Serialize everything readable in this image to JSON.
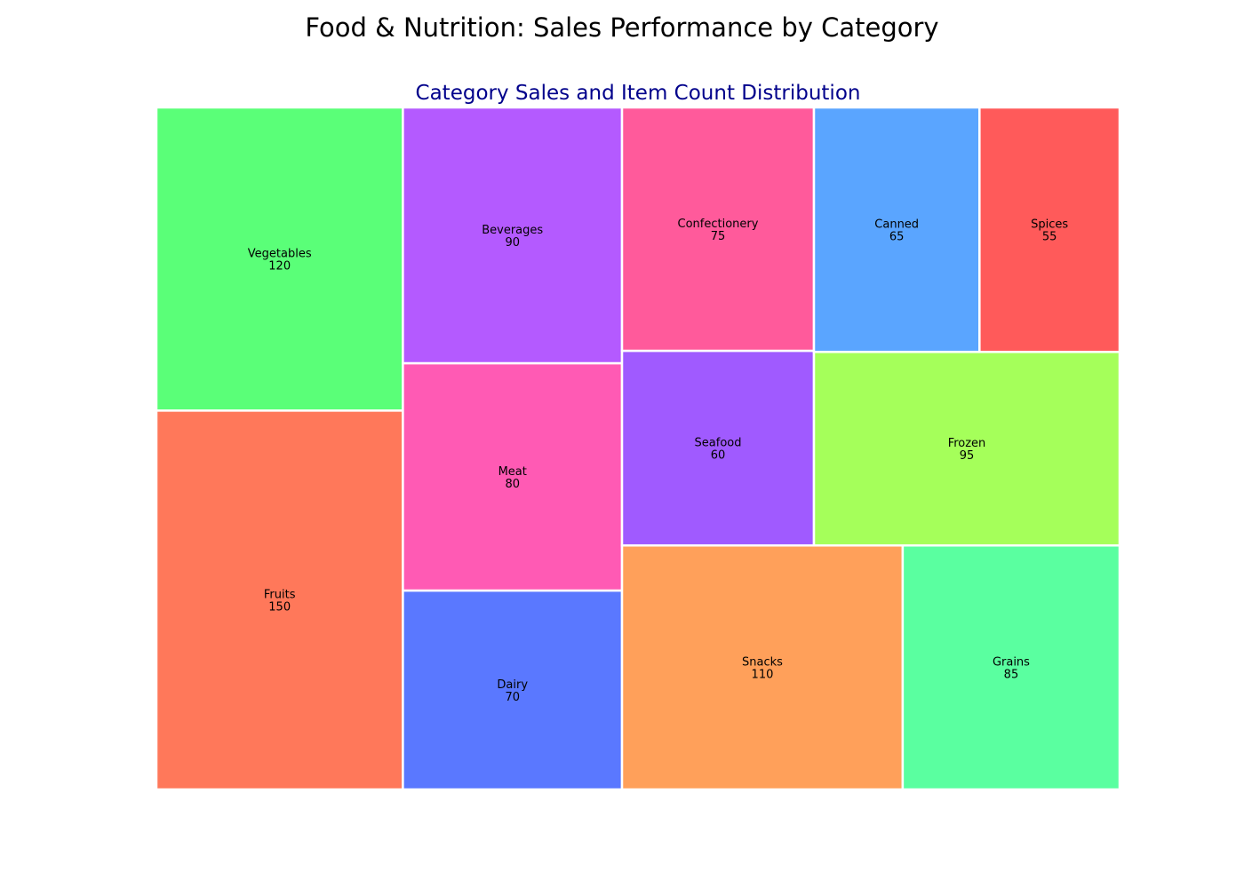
{
  "title": "Food & Nutrition: Sales Performance by Category",
  "chart_data": {
    "type": "treemap",
    "subtitle": "Category Sales and Item Count Distribution",
    "subtitle_color": "#00008b",
    "tile_border_color": "#ffffff",
    "items": [
      {
        "name": "Fruits",
        "value": 150,
        "color": "#ff785a"
      },
      {
        "name": "Vegetables",
        "value": 120,
        "color": "#5aff78"
      },
      {
        "name": "Dairy",
        "value": 70,
        "color": "#5a78ff"
      },
      {
        "name": "Meat",
        "value": 80,
        "color": "#ff5ab4"
      },
      {
        "name": "Beverages",
        "value": 90,
        "color": "#b45aff"
      },
      {
        "name": "Snacks",
        "value": 110,
        "color": "#ffa05a"
      },
      {
        "name": "Grains",
        "value": 85,
        "color": "#5affa0"
      },
      {
        "name": "Seafood",
        "value": 60,
        "color": "#a05aff"
      },
      {
        "name": "Confectionery",
        "value": 75,
        "color": "#ff5a9b"
      },
      {
        "name": "Frozen",
        "value": 95,
        "color": "#a5ff5a"
      },
      {
        "name": "Canned",
        "value": 65,
        "color": "#5aa5ff"
      },
      {
        "name": "Spices",
        "value": 55,
        "color": "#ff5a5a"
      }
    ]
  }
}
